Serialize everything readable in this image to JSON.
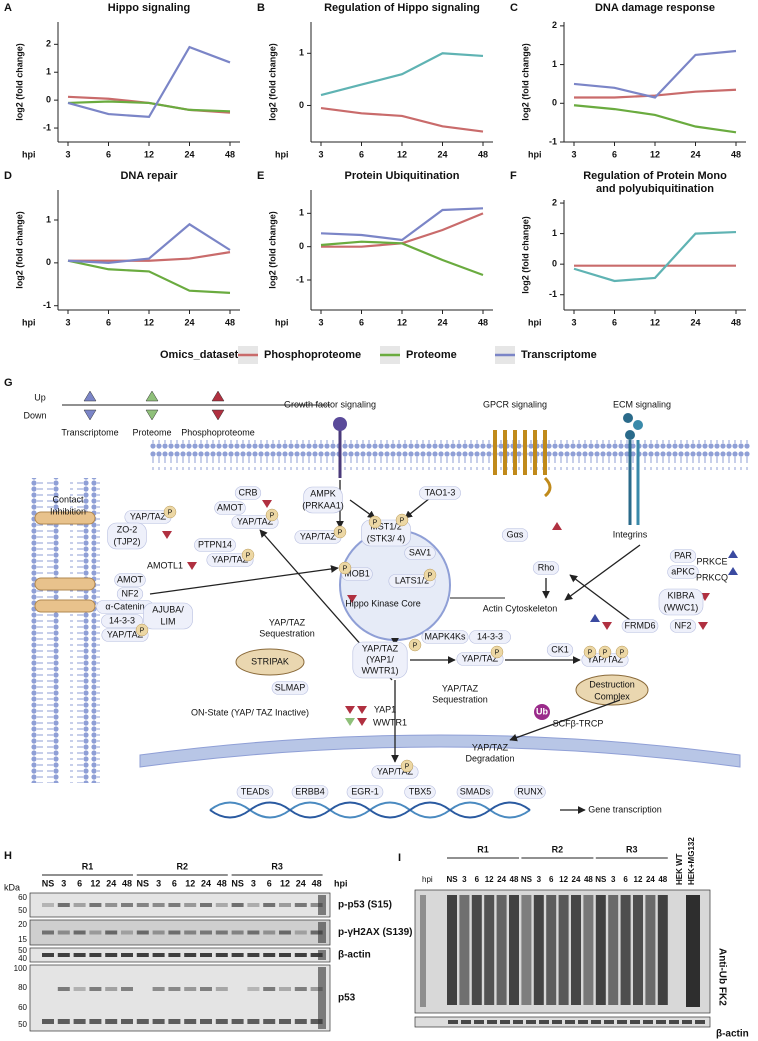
{
  "chart_data": [
    {
      "type": "line",
      "panel": "A",
      "title": "Hippo signaling",
      "ylabel": "log2 (fold change)",
      "xlabel": "hpi",
      "categories": [
        "3",
        "6",
        "12",
        "24",
        "48"
      ],
      "ylim": [
        -1.5,
        2.8
      ],
      "yticks": [
        -1,
        0,
        1,
        2
      ],
      "series": [
        {
          "name": "Phosphoproteome",
          "color": "#c96b6b",
          "values": [
            0.12,
            0.05,
            -0.1,
            -0.35,
            -0.45
          ]
        },
        {
          "name": "Proteome",
          "color": "#6aab3f",
          "values": [
            -0.1,
            -0.05,
            -0.1,
            -0.35,
            -0.4
          ]
        },
        {
          "name": "Transcriptome",
          "color": "#7b85c7",
          "values": [
            -0.1,
            -0.5,
            -0.6,
            1.9,
            1.35
          ]
        }
      ]
    },
    {
      "type": "line",
      "panel": "B",
      "title": "Regulation of Hippo signaling",
      "ylabel": "log2 (fold change)",
      "xlabel": "hpi",
      "categories": [
        "3",
        "6",
        "12",
        "24",
        "48"
      ],
      "ylim": [
        -0.7,
        1.6
      ],
      "yticks": [
        0,
        1
      ],
      "series": [
        {
          "name": "Phosphoproteome",
          "color": "#c96b6b",
          "values": [
            -0.05,
            -0.15,
            -0.2,
            -0.4,
            -0.5
          ]
        },
        {
          "name": "Transcriptome",
          "color": "#5fb3b3",
          "values": [
            0.2,
            0.4,
            0.6,
            1.0,
            0.95
          ]
        }
      ]
    },
    {
      "type": "line",
      "panel": "C",
      "title": "DNA damage response",
      "ylabel": "log2 (fold change)",
      "xlabel": "hpi",
      "categories": [
        "3",
        "6",
        "12",
        "24",
        "48"
      ],
      "ylim": [
        -1.0,
        2.1
      ],
      "yticks": [
        -1,
        0,
        1,
        2
      ],
      "series": [
        {
          "name": "Phosphoproteome",
          "color": "#c96b6b",
          "values": [
            0.15,
            0.15,
            0.2,
            0.3,
            0.35
          ]
        },
        {
          "name": "Proteome",
          "color": "#6aab3f",
          "values": [
            -0.05,
            -0.15,
            -0.3,
            -0.6,
            -0.75
          ]
        },
        {
          "name": "Transcriptome",
          "color": "#7b85c7",
          "values": [
            0.5,
            0.4,
            0.15,
            1.25,
            1.35
          ]
        }
      ]
    },
    {
      "type": "line",
      "panel": "D",
      "title": "DNA repair",
      "ylabel": "log2 (fold change)",
      "xlabel": "hpi",
      "categories": [
        "3",
        "6",
        "12",
        "24",
        "48"
      ],
      "ylim": [
        -1.1,
        1.7
      ],
      "yticks": [
        -1,
        0,
        1
      ],
      "series": [
        {
          "name": "Phosphoproteome",
          "color": "#c96b6b",
          "values": [
            0.05,
            0.05,
            0.05,
            0.1,
            0.25
          ]
        },
        {
          "name": "Proteome",
          "color": "#6aab3f",
          "values": [
            0.05,
            -0.15,
            -0.2,
            -0.65,
            -0.7
          ]
        },
        {
          "name": "Transcriptome",
          "color": "#7b85c7",
          "values": [
            0.05,
            0.0,
            0.1,
            0.9,
            0.3
          ]
        }
      ]
    },
    {
      "type": "line",
      "panel": "E",
      "title": "Protein Ubiquitination",
      "ylabel": "log2 (fold change)",
      "xlabel": "hpi",
      "categories": [
        "3",
        "6",
        "12",
        "24",
        "48"
      ],
      "ylim": [
        -1.9,
        1.7
      ],
      "yticks": [
        -1,
        0,
        1
      ],
      "series": [
        {
          "name": "Phosphoproteome",
          "color": "#c96b6b",
          "values": [
            0.0,
            0.0,
            0.1,
            0.5,
            1.0
          ]
        },
        {
          "name": "Proteome",
          "color": "#6aab3f",
          "values": [
            0.05,
            0.15,
            0.1,
            -0.4,
            -0.85
          ]
        },
        {
          "name": "Transcriptome",
          "color": "#7b85c7",
          "values": [
            0.4,
            0.35,
            0.2,
            1.1,
            1.15
          ]
        }
      ]
    },
    {
      "type": "line",
      "panel": "F",
      "title": [
        "Regulation of Protein Mono",
        "and polyubiquitination"
      ],
      "ylabel": "log2 (fold change)",
      "xlabel": "hpi",
      "categories": [
        "3",
        "6",
        "12",
        "24",
        "48"
      ],
      "ylim": [
        -1.5,
        2.1
      ],
      "yticks": [
        -1,
        0,
        1,
        2
      ],
      "series": [
        {
          "name": "Phosphoproteome",
          "color": "#c96b6b",
          "values": [
            -0.05,
            -0.05,
            -0.05,
            -0.05,
            -0.05
          ]
        },
        {
          "name": "Transcriptome",
          "color": "#5fb3b3",
          "values": [
            -0.15,
            -0.55,
            -0.45,
            1.0,
            1.05
          ]
        }
      ]
    }
  ],
  "legend_title": "Omics_dataset",
  "panel_g": {
    "letter": "G",
    "p_label": "P",
    "labels": [
      "Up",
      "Down",
      "Transcriptome",
      "Proteome",
      "Phosphoproteome",
      "Growth factor signaling",
      "GPCR signaling",
      "ECM signaling",
      "CRB",
      "AMOT",
      "YAP/TAZ",
      "AMPK",
      "(PRKAA1)",
      "TAO1-3",
      "Contact",
      "Inhibition",
      "YAP/TAZ",
      "ZO-2",
      "(TJP2)",
      "PTPN14",
      "YAP/TAZ",
      "YAP/TAZ",
      "MST1/2",
      "(STK3/ 4)",
      "SAV1",
      "Gαs",
      "Rho",
      "Integrins",
      "AMOTL1",
      "AMOT",
      "NF2",
      "MOB1",
      "LATS1/2",
      "Hippo Kinase Core",
      "Actin Cytoskeleton",
      "PAR",
      "aPKC",
      "PRKCE",
      "PRKCQ",
      "KIBRA",
      "(WWC1)",
      "FRMD6",
      "NF2",
      "α-Catenin",
      "14-3-3",
      "AJUBA/",
      "LIM",
      "YAP/TAZ",
      "YAP/TAZ",
      "Sequestration",
      "STRIPAK",
      "SLMAP",
      "YAP/TAZ",
      "(YAP1/",
      "WWTR1)",
      "MAPK4Ks",
      "14-3-3",
      "YAP/TAZ",
      "CK1",
      "YAP/TAZ",
      "Destruction",
      "Complex",
      "YAP/TAZ",
      "Sequestration",
      "Ub",
      "SCFβ-TRCP",
      "ON-State (YAP/ TAZ Inactive)",
      "YAP1",
      "WWTR1",
      "YAP/TAZ",
      "Degradation",
      "YAP/TAZ",
      "TEADs",
      "ERBB4",
      "EGR-1",
      "TBX5",
      "SMADs",
      "RUNX",
      "Gene transcription"
    ]
  },
  "panel_h": {
    "letter": "H",
    "kda": "kDa",
    "hpi": "hpi",
    "groups": [
      "R1",
      "R2",
      "R3"
    ],
    "lanes": [
      "NS",
      "3",
      "6",
      "12",
      "24",
      "48"
    ],
    "markers": [
      60,
      50,
      20,
      15,
      50,
      40,
      100,
      80,
      60,
      50
    ],
    "antibodies": [
      "p-p53 (S15)",
      "p-γH2AX (S139)",
      "β-actin",
      "p53"
    ]
  },
  "panel_i": {
    "letter": "I",
    "hpi": "hpi",
    "groups": [
      "R1",
      "R2",
      "R3"
    ],
    "lanes": [
      "NS",
      "3",
      "6",
      "12",
      "24",
      "48"
    ],
    "controls": [
      "HEK WT",
      "HEK+MG132"
    ],
    "antibodies": [
      "Anti-Ub FK2",
      "β-actin"
    ]
  }
}
